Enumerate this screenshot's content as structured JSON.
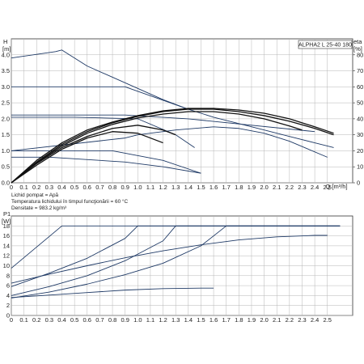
{
  "chart_data": [
    {
      "type": "line",
      "title": "ALPHA2 L 25-40 180",
      "y_axis_label": "H",
      "y_axis_unit": "[m]",
      "y2_axis_label": "eta",
      "y2_axis_unit": "[%]",
      "x_axis_unit": "Q [m³/h]",
      "xlim": [
        0,
        2.7
      ],
      "ylim": [
        0,
        4.5
      ],
      "y2lim": [
        0,
        90
      ],
      "x_ticks": [
        "0",
        "0.1",
        "0.2",
        "0.3",
        "0.4",
        "0.5",
        "0.6",
        "0.7",
        "0.8",
        "0.9",
        "1.0",
        "1.1",
        "1.2",
        "1.3",
        "1.4",
        "1.5",
        "1.6",
        "1.7",
        "1.8",
        "1.9",
        "2.0",
        "2.1",
        "2.2",
        "2.3",
        "2.4",
        "2.5"
      ],
      "y_ticks": [
        "0.0",
        "0.5",
        "1.0",
        "1.5",
        "2.0",
        "2.5",
        "3.0",
        "3.5",
        "4.0"
      ],
      "y2_ticks": [
        "0",
        "10",
        "20",
        "30",
        "40",
        "50",
        "60",
        "70",
        "80"
      ],
      "grid": true,
      "notes": [
        "Lichid pompat = Apă",
        "Temperatura lichidului în timpul funcţionării = 60 °C",
        "Densitate = 983.2 kg/m³"
      ],
      "series": [
        {
          "axis": "H",
          "x": [
            0,
            0.35,
            0.4,
            0.6,
            0.8,
            1.0,
            1.2,
            1.4,
            1.6,
            1.8,
            2.0,
            2.2,
            2.4,
            2.55
          ],
          "y": [
            3.9,
            4.1,
            4.15,
            3.65,
            3.3,
            2.95,
            2.6,
            2.3,
            2.05,
            1.85,
            1.65,
            1.45,
            1.25,
            1.1
          ]
        },
        {
          "axis": "H",
          "x": [
            0,
            0.9,
            1.4
          ],
          "y": [
            3.0,
            3.0,
            2.3
          ]
        },
        {
          "axis": "H",
          "x": [
            0,
            0.9,
            1.4,
            2.4
          ],
          "y": [
            2.12,
            2.12,
            2.0,
            1.6
          ]
        },
        {
          "axis": "H",
          "x": [
            0,
            0.5,
            1.0,
            1.3,
            1.45
          ],
          "y": [
            2.05,
            2.05,
            2.0,
            1.5,
            1.1
          ]
        },
        {
          "axis": "H",
          "x": [
            0,
            0.8,
            1.2,
            1.5
          ],
          "y": [
            1.0,
            1.0,
            0.7,
            0.3
          ]
        },
        {
          "axis": "H",
          "x": [
            0,
            0.9,
            1.0,
            1.3,
            1.6,
            1.8,
            2.0,
            2.2,
            2.5
          ],
          "y": [
            1.0,
            1.4,
            1.5,
            1.65,
            1.75,
            1.7,
            1.55,
            1.3,
            0.8
          ]
        },
        {
          "axis": "H",
          "x": [
            0,
            0.3,
            0.9,
            1.2,
            1.5
          ],
          "y": [
            0.8,
            0.8,
            0.65,
            0.5,
            0.3
          ]
        },
        {
          "axis": "eta",
          "x": [
            0,
            0.2,
            0.4,
            0.6,
            0.8,
            1.0,
            1.2,
            1.4,
            1.6,
            1.8,
            2.0,
            2.2,
            2.4,
            2.55
          ],
          "y": [
            0,
            14,
            25,
            33,
            38,
            42,
            45,
            46.5,
            46.5,
            45.5,
            43.5,
            40,
            35,
            31
          ]
        },
        {
          "axis": "eta",
          "x": [
            0,
            0.2,
            0.4,
            0.6,
            0.8,
            1.0,
            1.2,
            1.4,
            1.6,
            1.8,
            2.0,
            2.2,
            2.4,
            2.55
          ],
          "y": [
            0,
            13,
            24,
            32,
            37.5,
            41.5,
            44.5,
            46,
            46,
            44.5,
            42,
            38.5,
            34,
            30
          ]
        },
        {
          "axis": "eta",
          "x": [
            0,
            0.2,
            0.4,
            0.6,
            0.8,
            1.0,
            1.2,
            1.4,
            1.6,
            1.8,
            2.0,
            2.2,
            2.3
          ],
          "y": [
            0,
            12.5,
            23,
            31,
            36.5,
            40.5,
            43,
            44.5,
            44.5,
            43,
            40,
            35.5,
            33
          ]
        },
        {
          "axis": "eta",
          "x": [
            0,
            0.2,
            0.4,
            0.6,
            0.8,
            1.0,
            1.2,
            1.3
          ],
          "y": [
            0,
            12,
            22,
            29,
            34,
            36,
            33,
            30
          ]
        },
        {
          "axis": "eta",
          "x": [
            0,
            0.2,
            0.4,
            0.6,
            0.8,
            1.0,
            1.2
          ],
          "y": [
            0,
            11,
            21,
            28,
            32,
            31,
            25
          ]
        }
      ]
    },
    {
      "type": "line",
      "y_axis_label": "P1",
      "y_axis_unit": "[W]",
      "xlim": [
        0,
        2.7
      ],
      "ylim": [
        0,
        20
      ],
      "x_ticks": [
        "0",
        "0.1",
        "0.2",
        "0.3",
        "0.4",
        "0.5",
        "0.6",
        "0.7",
        "0.8",
        "0.9",
        "1.0",
        "1.1",
        "1.2",
        "1.3",
        "1.4",
        "1.5",
        "1.6",
        "1.7",
        "1.8",
        "1.9",
        "2.0",
        "2.1",
        "2.2",
        "2.3",
        "2.4",
        "2.5"
      ],
      "y_ticks": [
        "0",
        "2",
        "4",
        "6",
        "8",
        "10",
        "12",
        "14",
        "16",
        "18"
      ],
      "grid": true,
      "series": [
        {
          "x": [
            0,
            0.4,
            2.6
          ],
          "y": [
            9.5,
            18,
            18
          ]
        },
        {
          "x": [
            0,
            0.3,
            0.6,
            0.9,
            1.2,
            1.5,
            1.8,
            2.1,
            2.4,
            2.5
          ],
          "y": [
            6.5,
            8.3,
            10,
            11.6,
            13,
            14.2,
            15.2,
            15.8,
            16.1,
            16.1
          ]
        },
        {
          "x": [
            0,
            0.3,
            0.6,
            0.9,
            1.0,
            2.6
          ],
          "y": [
            5.8,
            8.5,
            11.5,
            15.5,
            18,
            18
          ]
        },
        {
          "x": [
            0,
            0.3,
            0.6,
            0.9,
            1.2,
            1.3,
            2.6
          ],
          "y": [
            4.0,
            5.8,
            8.0,
            11.0,
            15.0,
            18,
            18
          ]
        },
        {
          "x": [
            0,
            0.3,
            0.6,
            0.9,
            1.2,
            1.5,
            1.7,
            2.6
          ],
          "y": [
            3.5,
            4.7,
            6.3,
            8.2,
            10.5,
            14.0,
            18,
            18
          ]
        },
        {
          "x": [
            0,
            0.3,
            0.6,
            0.9,
            1.2,
            1.5,
            1.6
          ],
          "y": [
            3.6,
            4.1,
            4.6,
            5.1,
            5.4,
            5.5,
            5.5
          ]
        }
      ]
    }
  ]
}
